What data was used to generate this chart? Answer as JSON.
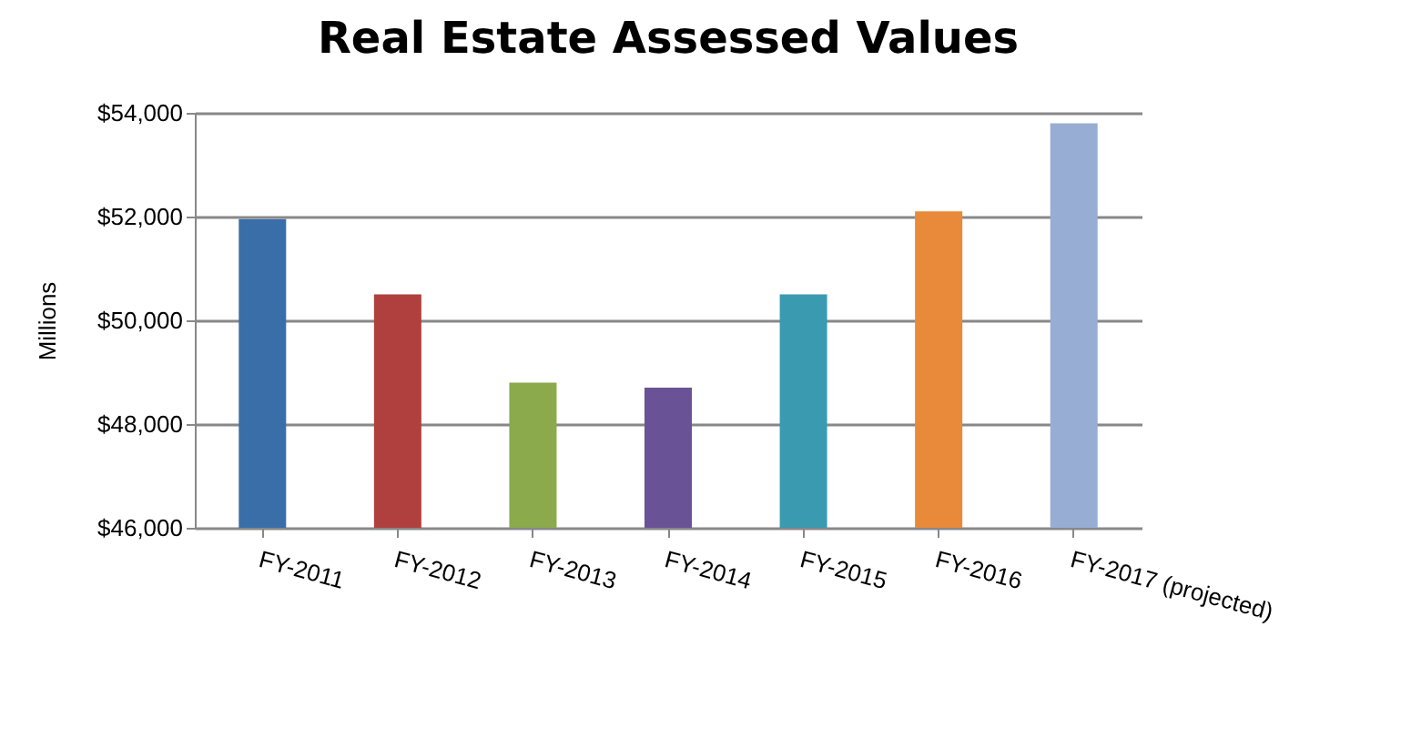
{
  "chart_data": {
    "type": "bar",
    "title": "Real Estate Assessed Values",
    "ylabel": "Millions",
    "categories": [
      "FY-2011",
      "FY-2012",
      "FY-2013",
      "FY-2014",
      "FY-2015",
      "FY-2016",
      "FY-2017 (projected)"
    ],
    "values": [
      51950,
      50500,
      48800,
      48700,
      50500,
      52100,
      53800
    ],
    "colors": [
      "#3a6ea8",
      "#b0403e",
      "#8aaa4c",
      "#6a5296",
      "#3a9ab0",
      "#e88a3a",
      "#98add3"
    ],
    "ylim": [
      46000,
      54000
    ],
    "yticks": [
      {
        "value": 46000,
        "label": "$46,000"
      },
      {
        "value": 48000,
        "label": "$48,000"
      },
      {
        "value": 50000,
        "label": "$50,000"
      },
      {
        "value": 52000,
        "label": "$52,000"
      },
      {
        "value": 54000,
        "label": "$54,000"
      }
    ],
    "grid": "y"
  }
}
